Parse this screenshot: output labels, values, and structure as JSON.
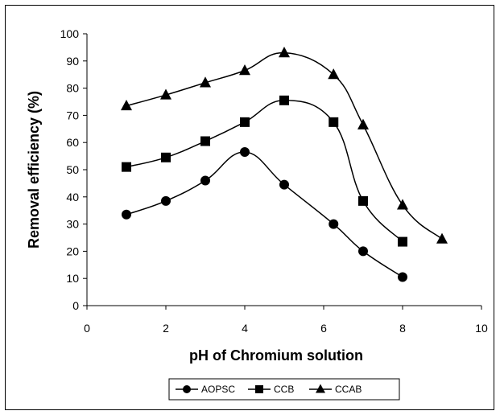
{
  "chart_data": {
    "type": "line",
    "xlabel": "pH of Chromium solution",
    "ylabel": "Removal efficiency (%)",
    "xlim": [
      0,
      10
    ],
    "ylim": [
      0,
      100
    ],
    "x_ticks": [
      "0",
      "2",
      "4",
      "6",
      "8",
      "10"
    ],
    "y_ticks": [
      "0",
      "10",
      "20",
      "30",
      "40",
      "50",
      "60",
      "70",
      "80",
      "90",
      "100"
    ],
    "grid": false,
    "legend_position": "bottom",
    "series": [
      {
        "name": "AOPSC",
        "marker": "circle",
        "color": "#000000",
        "x": [
          1,
          2,
          3,
          4,
          5,
          6.25,
          7,
          8
        ],
        "y": [
          33.5,
          38.5,
          46,
          56.5,
          44.5,
          30,
          20,
          10.5
        ]
      },
      {
        "name": "CCB",
        "marker": "square",
        "color": "#000000",
        "x": [
          1,
          2,
          3,
          4,
          5,
          6.25,
          7,
          8
        ],
        "y": [
          51,
          54.5,
          60.5,
          67.5,
          75.5,
          67.5,
          38.5,
          23.5
        ]
      },
      {
        "name": "CCAB",
        "marker": "triangle",
        "color": "#000000",
        "x": [
          1,
          2,
          3,
          4,
          5,
          6.25,
          7,
          8,
          9
        ],
        "y": [
          73.5,
          77.5,
          82,
          86.5,
          93,
          85,
          66.5,
          37,
          24.5
        ]
      }
    ]
  }
}
